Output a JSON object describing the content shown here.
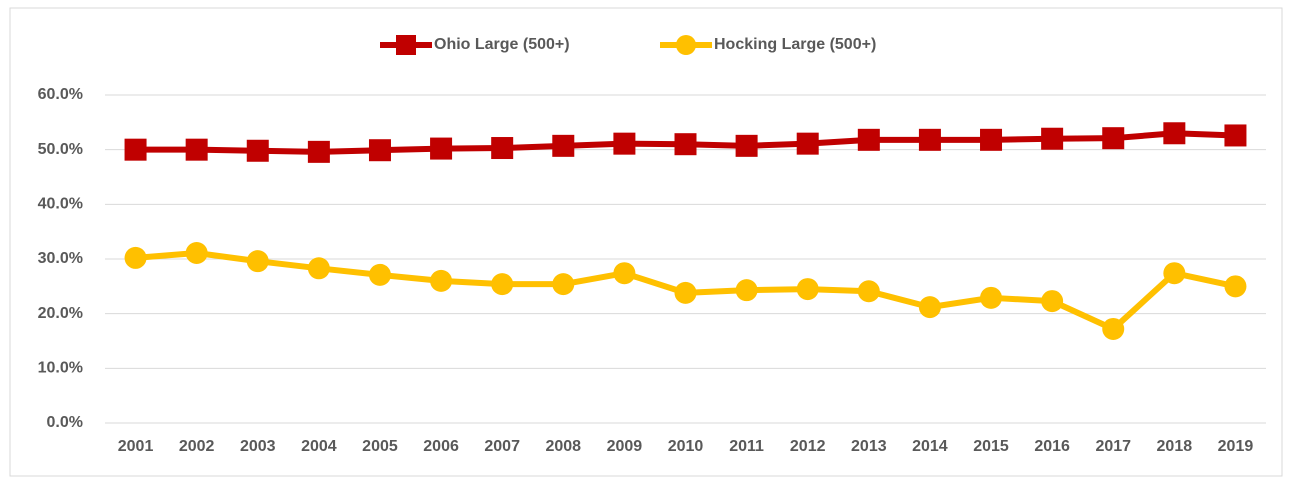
{
  "chart_data": {
    "type": "line",
    "categories": [
      "2001",
      "2002",
      "2003",
      "2004",
      "2005",
      "2006",
      "2007",
      "2008",
      "2009",
      "2010",
      "2011",
      "2012",
      "2013",
      "2014",
      "2015",
      "2016",
      "2017",
      "2018",
      "2019"
    ],
    "series": [
      {
        "name": "Ohio Large (500+)",
        "color": "#c00000",
        "marker": "square",
        "values": [
          50.0,
          50.0,
          49.8,
          49.6,
          49.9,
          50.2,
          50.3,
          50.7,
          51.1,
          51.0,
          50.7,
          51.1,
          51.8,
          51.8,
          51.8,
          52.0,
          52.1,
          53.0,
          52.6
        ]
      },
      {
        "name": "Hocking  Large (500+)",
        "color": "#ffc000",
        "marker": "circle",
        "values": [
          30.2,
          31.1,
          29.6,
          28.3,
          27.1,
          26.0,
          25.4,
          25.4,
          27.4,
          23.8,
          24.3,
          24.5,
          24.1,
          21.2,
          22.9,
          22.3,
          17.2,
          27.4,
          25.0
        ]
      }
    ],
    "ylim": [
      0,
      60
    ],
    "yticks": [
      {
        "value": 0,
        "label": "0.0%"
      },
      {
        "value": 10,
        "label": "10.0%"
      },
      {
        "value": 20,
        "label": "20.0%"
      },
      {
        "value": 30,
        "label": "30.0%"
      },
      {
        "value": 40,
        "label": "40.0%"
      },
      {
        "value": 50,
        "label": "50.0%"
      },
      {
        "value": 60,
        "label": "60.0%"
      }
    ],
    "grid": true,
    "legend": "top"
  }
}
